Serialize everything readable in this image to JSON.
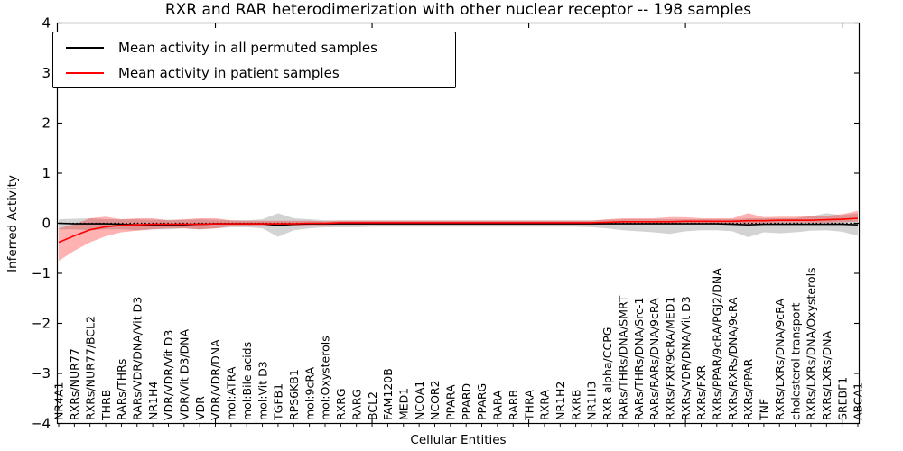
{
  "chart_data": {
    "type": "line",
    "title": "RXR and RAR heterodimerization with other nuclear receptor -- 198 samples",
    "xlabel": "Cellular Entities",
    "ylabel": "Inferred Activity",
    "ylim": [
      -4,
      4
    ],
    "yticks": [
      4,
      3,
      2,
      1,
      0,
      -1,
      -2,
      -3,
      -4
    ],
    "grid": false,
    "legend_position": "upper left",
    "x_major_tick_indices": [
      10,
      20,
      30,
      40,
      50
    ],
    "zero_line": {
      "style": "dotted",
      "color": "#000000",
      "y": 0
    },
    "categories": [
      "NR4A1",
      "RXRs/NUR77",
      "RXRs/NUR77/BCL2",
      "THRB",
      "RARs/THRs",
      "RARs/VDR/DNA/Vit D3",
      "NR1H4",
      "VDR/VDR/Vit D3",
      "VDR/Vit D3/DNA",
      "VDR",
      "VDR/VDR/DNA",
      "mol:ATRA",
      "mol:Bile acids",
      "mol:Vit D3",
      "TGFB1",
      "RPS6KB1",
      "mol:9cRA",
      "mol:Oxysterols",
      "RXRG",
      "RARG",
      "BCL2",
      "FAM120B",
      "MED1",
      "NCOA1",
      "NCOR2",
      "PPARA",
      "PPARD",
      "PPARG",
      "RARA",
      "RARB",
      "THRA",
      "RXRA",
      "NR1H2",
      "RXRB",
      "NR1H3",
      "RXR alpha/CCPG",
      "RARs/THRs/DNA/SMRT",
      "RARs/THRs/DNA/Src-1",
      "RARs/RARs/DNA/9cRA",
      "RXRs/FXR/9cRA/MED1",
      "RXRs/VDR/DNA/Vit D3",
      "RXRs/FXR",
      "RXRs/PPAR/9cRA/PGJ2/DNA",
      "RXRs/RXRs/DNA/9cRA",
      "RXRs/PPAR",
      "TNF",
      "RXRs/LXRs/DNA/9cRA",
      "cholesterol transport",
      "RXRs/LXRs/DNA/Oxysterols",
      "RXRs/LXRs/DNA",
      "SREBF1",
      "ABCA1"
    ],
    "series": [
      {
        "name": "Mean activity in all permuted samples",
        "color": "#000000",
        "band_color": "#808080",
        "band_opacity": 0.35,
        "values": [
          0.0,
          -0.01,
          -0.01,
          -0.01,
          -0.02,
          -0.03,
          -0.04,
          -0.04,
          -0.03,
          -0.02,
          -0.01,
          -0.01,
          -0.01,
          -0.01,
          -0.04,
          -0.02,
          -0.01,
          -0.01,
          -0.01,
          -0.01,
          -0.01,
          -0.01,
          -0.01,
          -0.01,
          -0.01,
          -0.01,
          -0.01,
          -0.01,
          -0.01,
          -0.01,
          -0.01,
          -0.01,
          -0.01,
          -0.01,
          -0.01,
          -0.01,
          -0.01,
          -0.01,
          -0.01,
          -0.01,
          -0.01,
          -0.01,
          -0.01,
          -0.02,
          -0.03,
          -0.02,
          -0.02,
          -0.02,
          -0.02,
          -0.02,
          -0.02,
          -0.03
        ],
        "band_lo": [
          -0.12,
          -0.12,
          -0.14,
          -0.12,
          -0.12,
          -0.14,
          -0.12,
          -0.12,
          -0.1,
          -0.12,
          -0.1,
          -0.08,
          -0.08,
          -0.1,
          -0.27,
          -0.14,
          -0.1,
          -0.08,
          -0.08,
          -0.08,
          -0.07,
          -0.07,
          -0.07,
          -0.07,
          -0.07,
          -0.07,
          -0.07,
          -0.07,
          -0.07,
          -0.07,
          -0.07,
          -0.07,
          -0.07,
          -0.07,
          -0.08,
          -0.1,
          -0.14,
          -0.16,
          -0.18,
          -0.21,
          -0.16,
          -0.14,
          -0.14,
          -0.16,
          -0.28,
          -0.18,
          -0.2,
          -0.18,
          -0.15,
          -0.14,
          -0.17,
          -0.25
        ],
        "band_hi": [
          0.08,
          0.09,
          0.1,
          0.08,
          0.08,
          0.08,
          0.07,
          0.07,
          0.07,
          0.08,
          0.07,
          0.06,
          0.06,
          0.08,
          0.2,
          0.1,
          0.08,
          0.06,
          0.06,
          0.06,
          0.06,
          0.06,
          0.06,
          0.06,
          0.06,
          0.06,
          0.06,
          0.06,
          0.06,
          0.06,
          0.06,
          0.06,
          0.06,
          0.06,
          0.06,
          0.07,
          0.08,
          0.08,
          0.08,
          0.08,
          0.08,
          0.08,
          0.08,
          0.08,
          0.1,
          0.1,
          0.1,
          0.1,
          0.14,
          0.2,
          0.16,
          0.2
        ]
      },
      {
        "name": "Mean activity in patient samples",
        "color": "#ff0000",
        "band_color": "#ff0000",
        "band_opacity": 0.3,
        "values": [
          -0.38,
          -0.25,
          -0.13,
          -0.07,
          -0.04,
          -0.03,
          -0.02,
          -0.02,
          -0.02,
          -0.02,
          -0.01,
          -0.01,
          -0.01,
          -0.01,
          -0.01,
          -0.01,
          0.0,
          0.0,
          0.01,
          0.01,
          0.01,
          0.01,
          0.01,
          0.01,
          0.01,
          0.01,
          0.01,
          0.01,
          0.01,
          0.01,
          0.01,
          0.01,
          0.01,
          0.01,
          0.01,
          0.02,
          0.03,
          0.03,
          0.03,
          0.03,
          0.04,
          0.04,
          0.04,
          0.04,
          0.05,
          0.05,
          0.06,
          0.06,
          0.06,
          0.07,
          0.08,
          0.1
        ],
        "band_lo": [
          -0.75,
          -0.55,
          -0.38,
          -0.26,
          -0.18,
          -0.15,
          -0.12,
          -0.1,
          -0.1,
          -0.12,
          -0.1,
          -0.06,
          -0.05,
          -0.05,
          -0.06,
          -0.05,
          -0.04,
          -0.04,
          -0.03,
          -0.03,
          -0.03,
          -0.03,
          -0.03,
          -0.03,
          -0.03,
          -0.03,
          -0.03,
          -0.03,
          -0.03,
          -0.03,
          -0.03,
          -0.03,
          -0.03,
          -0.03,
          -0.03,
          -0.02,
          -0.01,
          0.0,
          0.0,
          0.0,
          0.0,
          0.0,
          0.0,
          0.0,
          -0.03,
          0.0,
          0.01,
          0.01,
          0.01,
          0.01,
          0.02,
          0.03
        ],
        "band_hi": [
          -0.1,
          -0.02,
          0.1,
          0.13,
          0.08,
          0.1,
          0.1,
          0.06,
          0.08,
          0.1,
          0.1,
          0.06,
          0.05,
          0.05,
          0.05,
          0.05,
          0.05,
          0.04,
          0.05,
          0.05,
          0.05,
          0.05,
          0.05,
          0.05,
          0.05,
          0.05,
          0.05,
          0.05,
          0.05,
          0.05,
          0.05,
          0.05,
          0.05,
          0.05,
          0.05,
          0.08,
          0.1,
          0.1,
          0.1,
          0.12,
          0.12,
          0.1,
          0.1,
          0.1,
          0.2,
          0.12,
          0.13,
          0.13,
          0.14,
          0.15,
          0.18,
          0.25
        ]
      }
    ]
  }
}
